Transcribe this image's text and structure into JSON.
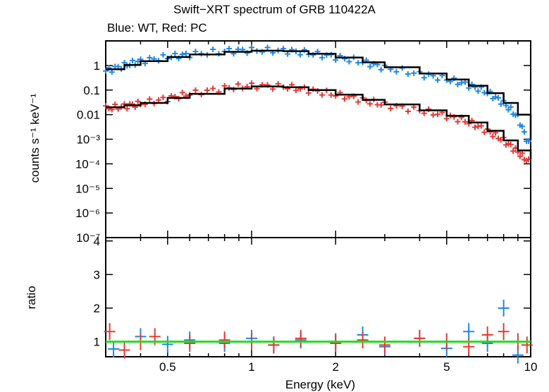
{
  "chart_data": [
    {
      "type": "line",
      "title": "Swift−XRT spectrum of GRB 110422A",
      "subtitle": "Blue: WT, Red: PC",
      "ylabel": "counts s⁻¹ keV⁻¹",
      "xlabel": "",
      "xscale": "log",
      "yscale": "log",
      "xlim": [
        0.3,
        10
      ],
      "ylim": [
        1e-07,
        10
      ],
      "ytick_labels": [
        "1",
        "0.1",
        "0.01",
        "10⁻³",
        "10⁻⁴",
        "10⁻⁵",
        "10⁻⁶",
        "10⁻⁷"
      ],
      "ytick_values": [
        1,
        0.1,
        0.01,
        0.001,
        0.0001,
        1e-05,
        1e-06,
        1e-07
      ],
      "series": [
        {
          "name": "WT",
          "color": "#1e88e5",
          "x": [
            0.3,
            0.35,
            0.4,
            0.5,
            0.6,
            0.8,
            1.0,
            1.3,
            1.6,
            2.0,
            2.5,
            3.0,
            4.0,
            5.0,
            6.0,
            7.0,
            8.0,
            9.0,
            10.0
          ],
          "y": [
            0.6,
            1.0,
            1.5,
            2.2,
            2.8,
            3.8,
            4.2,
            4.0,
            3.2,
            2.2,
            1.4,
            0.8,
            0.45,
            0.28,
            0.16,
            0.08,
            0.03,
            0.008,
            0.0004
          ]
        },
        {
          "name": "PC",
          "color": "#e53935",
          "x": [
            0.3,
            0.35,
            0.4,
            0.5,
            0.6,
            0.8,
            1.0,
            1.3,
            1.6,
            2.0,
            2.5,
            3.0,
            4.0,
            5.0,
            6.0,
            7.0,
            8.0,
            9.0,
            10.0
          ],
          "y": [
            0.018,
            0.022,
            0.028,
            0.045,
            0.07,
            0.12,
            0.15,
            0.14,
            0.1,
            0.065,
            0.04,
            0.025,
            0.015,
            0.009,
            0.005,
            0.0022,
            0.0009,
            0.0003,
            0.0001
          ]
        },
        {
          "name": "model",
          "color": "#000000",
          "x": [
            0.3,
            0.35,
            0.4,
            0.5,
            0.6,
            0.8,
            1.0,
            1.3,
            1.6,
            2.0,
            2.5,
            3.0,
            4.0,
            5.0,
            6.0,
            7.0,
            8.0,
            9.0,
            10.0
          ],
          "y_wt": [
            0.7,
            1.05,
            1.5,
            2.2,
            2.8,
            3.6,
            4.0,
            3.8,
            3.0,
            2.1,
            1.35,
            0.85,
            0.47,
            0.27,
            0.15,
            0.075,
            0.03,
            0.01,
            0.001
          ],
          "y_pc": [
            0.02,
            0.024,
            0.03,
            0.048,
            0.07,
            0.115,
            0.14,
            0.13,
            0.1,
            0.065,
            0.04,
            0.026,
            0.015,
            0.009,
            0.0048,
            0.0022,
            0.0009,
            0.00035,
            0.00015
          ]
        }
      ]
    },
    {
      "type": "scatter",
      "xlabel": "Energy (keV)",
      "ylabel": "ratio",
      "xscale": "log",
      "xlim": [
        0.3,
        10
      ],
      "ylim": [
        0.55,
        4.1
      ],
      "ytick_labels": [
        "1",
        "2",
        "3",
        "4"
      ],
      "ytick_values": [
        1,
        2,
        3,
        4
      ],
      "xtick_labels": [
        "0.5",
        "1",
        "2",
        "5",
        "10"
      ],
      "xtick_values": [
        0.5,
        1,
        2,
        5,
        10
      ],
      "reference_line": {
        "y": 1,
        "color": "#22dd22"
      },
      "series": [
        {
          "name": "WT",
          "color": "#1e88e5",
          "x": [
            0.32,
            0.4,
            0.5,
            0.6,
            0.8,
            1.0,
            1.2,
            1.5,
            2.0,
            2.5,
            3.0,
            4.0,
            5.0,
            6.0,
            7.0,
            8.0,
            9.0
          ],
          "y": [
            0.78,
            1.15,
            0.92,
            1.05,
            0.95,
            1.1,
            0.9,
            1.05,
            1.0,
            1.2,
            0.85,
            1.1,
            0.8,
            1.3,
            0.95,
            2.0,
            0.6
          ]
        },
        {
          "name": "PC",
          "color": "#e53935",
          "x": [
            0.31,
            0.35,
            0.4,
            0.45,
            0.6,
            0.8,
            1.0,
            1.2,
            1.5,
            2.0,
            2.5,
            3.0,
            4.0,
            5.0,
            6.0,
            7.0,
            8.0,
            9.0,
            9.7
          ],
          "y": [
            1.3,
            0.75,
            1.0,
            1.15,
            0.95,
            1.05,
            1.0,
            0.9,
            1.1,
            0.95,
            1.05,
            0.9,
            1.1,
            1.0,
            0.85,
            1.2,
            1.3,
            1.0,
            0.9
          ]
        }
      ]
    }
  ]
}
